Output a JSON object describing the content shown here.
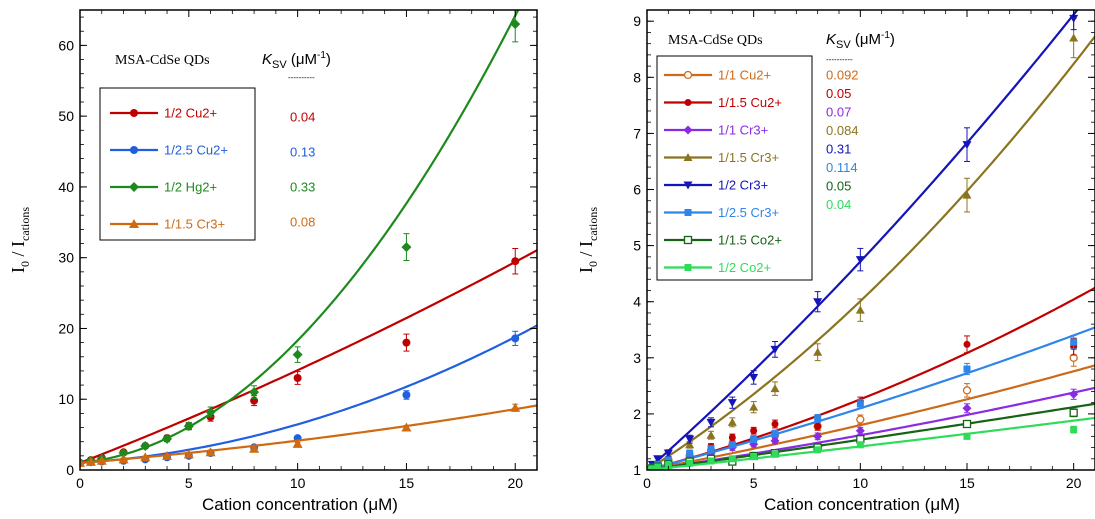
{
  "chart_data": [
    {
      "type": "scatter",
      "xlabel": "Cation concentration  (μM)",
      "ylabel_main": "I",
      "ylabel_sub0": "0",
      "ylabel_mid": " / I",
      "ylabel_sub1": "cations",
      "xlim": [
        0,
        21
      ],
      "ylim": [
        0,
        65
      ],
      "xticks": [
        "0",
        "5",
        "10",
        "15",
        "20"
      ],
      "yticks": [
        "0",
        "10",
        "20",
        "30",
        "40",
        "50",
        "60"
      ],
      "header": "MSA-CdSe QDs",
      "ksv_k": "K",
      "ksv_sub": "SV",
      "ksv_unit": " (μM",
      "ksv_sup": "-1",
      "ksv_close": ")",
      "ksv_dash": "----------",
      "series": [
        {
          "name": "1/2 Cu2+",
          "ksv": "0.04",
          "color": "#c00000",
          "marker": "circle",
          "x": [
            0,
            0.5,
            1,
            2,
            3,
            4,
            5,
            6,
            8,
            10,
            15,
            20
          ],
          "y": [
            1,
            1.4,
            1.7,
            2.5,
            3.4,
            4.5,
            6.2,
            7.5,
            9.8,
            13,
            18,
            29.5
          ],
          "err": [
            0.2,
            0.2,
            0.2,
            0.3,
            0.3,
            0.4,
            0.5,
            0.6,
            0.7,
            0.9,
            1.2,
            1.8
          ],
          "fit": {
            "a": 1.0,
            "b": 1.2,
            "c": 0.011
          }
        },
        {
          "name": "1/2.5 Cu2+",
          "ksv": "0.13",
          "color": "#1f5fe0",
          "marker": "circle",
          "x": [
            0,
            0.5,
            1,
            2,
            3,
            4,
            5,
            6,
            8,
            10,
            15,
            20
          ],
          "y": [
            1,
            1.1,
            1.2,
            1.3,
            1.5,
            1.8,
            2.0,
            2.4,
            3.2,
            4.5,
            10.6,
            18.6
          ],
          "err": [
            0.1,
            0.1,
            0.1,
            0.1,
            0.1,
            0.15,
            0.15,
            0.2,
            0.2,
            0.3,
            0.6,
            1.0
          ],
          "fit": {
            "a": 1.0,
            "b": 0.2,
            "c": 0.0345
          }
        },
        {
          "name": "1/2 Hg2+",
          "ksv": "0.33",
          "color": "#1e8a1e",
          "marker": "diamond",
          "x": [
            0,
            0.5,
            1,
            2,
            3,
            4,
            5,
            6,
            8,
            10,
            15,
            20
          ],
          "y": [
            1,
            1.3,
            1.6,
            2.4,
            3.4,
            4.4,
            6.2,
            8.2,
            11,
            16.3,
            31.5,
            63
          ],
          "err": [
            0.2,
            0.2,
            0.2,
            0.3,
            0.3,
            0.4,
            0.5,
            0.7,
            0.9,
            1.1,
            1.9,
            2.5
          ],
          "fit": {
            "a": 1.0,
            "b": 0.3,
            "c": 0.143
          }
        },
        {
          "name": "1/1.5 Cr3+",
          "ksv": "0.08",
          "color": "#d06a10",
          "marker": "triangle",
          "x": [
            0,
            0.5,
            1,
            2,
            3,
            4,
            5,
            6,
            8,
            10,
            15,
            20
          ],
          "y": [
            1,
            1.15,
            1.3,
            1.5,
            1.8,
            2.0,
            2.2,
            2.5,
            3.0,
            3.7,
            6.0,
            8.8
          ],
          "err": [
            0.1,
            0.1,
            0.1,
            0.1,
            0.1,
            0.1,
            0.1,
            0.15,
            0.15,
            0.2,
            0.3,
            0.5
          ],
          "fit": {
            "a": 1.0,
            "b": 0.25,
            "c": 0.0065
          }
        }
      ]
    },
    {
      "type": "scatter",
      "xlabel": "Cation concentration  (μM)",
      "ylabel_main": "I",
      "ylabel_sub0": "0",
      "ylabel_mid": " / I",
      "ylabel_sub1": "cations",
      "xlim": [
        0,
        21
      ],
      "ylim": [
        1,
        9.2
      ],
      "xticks": [
        "0",
        "5",
        "10",
        "15",
        "20"
      ],
      "yticks": [
        "1",
        "2",
        "3",
        "4",
        "5",
        "6",
        "7",
        "8",
        "9"
      ],
      "header": "MSA-CdSe QDs",
      "ksv_k": "K",
      "ksv_sub": "SV",
      "ksv_unit": " (μM",
      "ksv_sup": "-1",
      "ksv_close": ")",
      "ksv_dash": "----------",
      "series": [
        {
          "name": "1/1 Cu2+",
          "ksv": "0.092",
          "color": "#cc6a1a",
          "marker": "circle-open",
          "x": [
            0,
            0.25,
            0.5,
            1,
            2,
            3,
            4,
            5,
            6,
            8,
            10,
            15,
            20
          ],
          "y": [
            1.0,
            1.05,
            1.1,
            1.15,
            1.25,
            1.35,
            1.45,
            1.55,
            1.62,
            1.78,
            1.9,
            2.42,
            3.0
          ],
          "err": [
            0.03,
            0.03,
            0.03,
            0.04,
            0.05,
            0.05,
            0.05,
            0.06,
            0.06,
            0.07,
            0.08,
            0.12,
            0.15
          ],
          "fit": {
            "a": 1.0,
            "b": 0.072,
            "c": 0.0008
          }
        },
        {
          "name": "1/1.5 Cu2+",
          "ksv": "0.05",
          "color": "#c00000",
          "marker": "circle",
          "x": [
            0,
            0.25,
            0.5,
            1,
            2,
            3,
            4,
            5,
            6,
            8,
            10,
            15,
            20
          ],
          "y": [
            1.0,
            1.06,
            1.12,
            1.18,
            1.3,
            1.42,
            1.58,
            1.7,
            1.82,
            1.78,
            2.22,
            3.24,
            3.2
          ],
          "err": [
            0.03,
            0.03,
            0.03,
            0.04,
            0.05,
            0.05,
            0.06,
            0.06,
            0.07,
            0.07,
            0.08,
            0.15,
            0.15
          ],
          "fit": {
            "a": 1.0,
            "b": 0.1,
            "c": 0.0026
          }
        },
        {
          "name": "1/1 Cr3+",
          "ksv": "0.07",
          "color": "#8a2be2",
          "marker": "diamond",
          "x": [
            0,
            0.25,
            0.5,
            1,
            2,
            3,
            4,
            5,
            6,
            8,
            10,
            15,
            20
          ],
          "y": [
            1.0,
            1.04,
            1.08,
            1.12,
            1.2,
            1.3,
            1.4,
            1.46,
            1.52,
            1.6,
            1.7,
            2.1,
            2.35
          ],
          "err": [
            0.03,
            0.03,
            0.03,
            0.03,
            0.04,
            0.04,
            0.05,
            0.05,
            0.05,
            0.06,
            0.06,
            0.08,
            0.09
          ],
          "fit": {
            "a": 1.0,
            "b": 0.055,
            "c": 0.0007
          }
        },
        {
          "name": "1/1.5 Cr3+",
          "ksv": "0.084",
          "color": "#8b7420",
          "marker": "triangle",
          "x": [
            0,
            0.25,
            0.5,
            1,
            2,
            3,
            4,
            5,
            6,
            8,
            10,
            15,
            20
          ],
          "y": [
            1.0,
            1.08,
            1.16,
            1.25,
            1.45,
            1.62,
            1.85,
            2.12,
            2.45,
            3.1,
            3.85,
            5.9,
            8.7
          ],
          "err": [
            0.04,
            0.04,
            0.05,
            0.05,
            0.06,
            0.07,
            0.08,
            0.1,
            0.12,
            0.15,
            0.2,
            0.3,
            0.35
          ],
          "fit": {
            "a": 1.0,
            "b": 0.24,
            "c": 0.0061
          }
        },
        {
          "name": "1/2 Cr3+",
          "ksv": "0.31",
          "color": "#1414b8",
          "marker": "triangle-down",
          "x": [
            0,
            0.25,
            0.5,
            1,
            2,
            3,
            4,
            5,
            6,
            8,
            10,
            15,
            20
          ],
          "y": [
            1.0,
            1.1,
            1.2,
            1.3,
            1.55,
            1.85,
            2.2,
            2.65,
            3.15,
            4.0,
            4.75,
            6.8,
            9.05
          ],
          "err": [
            0.04,
            0.04,
            0.05,
            0.06,
            0.07,
            0.08,
            0.1,
            0.12,
            0.14,
            0.18,
            0.2,
            0.3,
            0.2
          ],
          "fit": {
            "a": 1.0,
            "b": 0.337,
            "c": 0.00345
          }
        },
        {
          "name": "1/2.5 Cr3+",
          "ksv": "0.114",
          "color": "#2f86ea",
          "marker": "square",
          "x": [
            0,
            0.25,
            0.5,
            1,
            2,
            3,
            4,
            5,
            6,
            8,
            10,
            15,
            20
          ],
          "y": [
            1.0,
            1.05,
            1.1,
            1.18,
            1.3,
            1.38,
            1.45,
            1.55,
            1.65,
            1.92,
            2.18,
            2.8,
            3.28
          ],
          "err": [
            0.03,
            0.03,
            0.03,
            0.04,
            0.05,
            0.05,
            0.05,
            0.06,
            0.06,
            0.07,
            0.08,
            0.1,
            0.12
          ],
          "fit": {
            "a": 1.0,
            "b": 0.1,
            "c": 0.001
          }
        },
        {
          "name": "1/1.5 Co2+",
          "ksv": "0.05",
          "color": "#146414",
          "marker": "square-open",
          "x": [
            0,
            0.25,
            0.5,
            1,
            2,
            3,
            4,
            5,
            6,
            8,
            10,
            15,
            20
          ],
          "y": [
            1.0,
            1.03,
            1.06,
            1.1,
            1.15,
            1.2,
            1.15,
            1.25,
            1.3,
            1.4,
            1.55,
            1.82,
            2.02
          ],
          "err": [
            0.03,
            0.03,
            0.03,
            0.03,
            0.04,
            0.04,
            0.04,
            0.04,
            0.05,
            0.05,
            0.05,
            0.06,
            0.07
          ],
          "fit": {
            "a": 1.0,
            "b": 0.052,
            "c": 0.0002
          }
        },
        {
          "name": "1/2 Co2+",
          "ksv": "0.04",
          "color": "#2edc5a",
          "marker": "square",
          "x": [
            0,
            0.25,
            0.5,
            1,
            2,
            3,
            4,
            5,
            6,
            8,
            10,
            15,
            20
          ],
          "y": [
            1.0,
            1.02,
            1.05,
            1.08,
            1.12,
            1.16,
            1.2,
            1.24,
            1.28,
            1.36,
            1.45,
            1.6,
            1.72
          ],
          "err": [
            0.02,
            0.02,
            0.02,
            0.03,
            0.03,
            0.03,
            0.03,
            0.04,
            0.04,
            0.04,
            0.05,
            0.05,
            0.06
          ],
          "fit": {
            "a": 1.0,
            "b": 0.04,
            "c": 0.0002
          }
        }
      ]
    }
  ]
}
